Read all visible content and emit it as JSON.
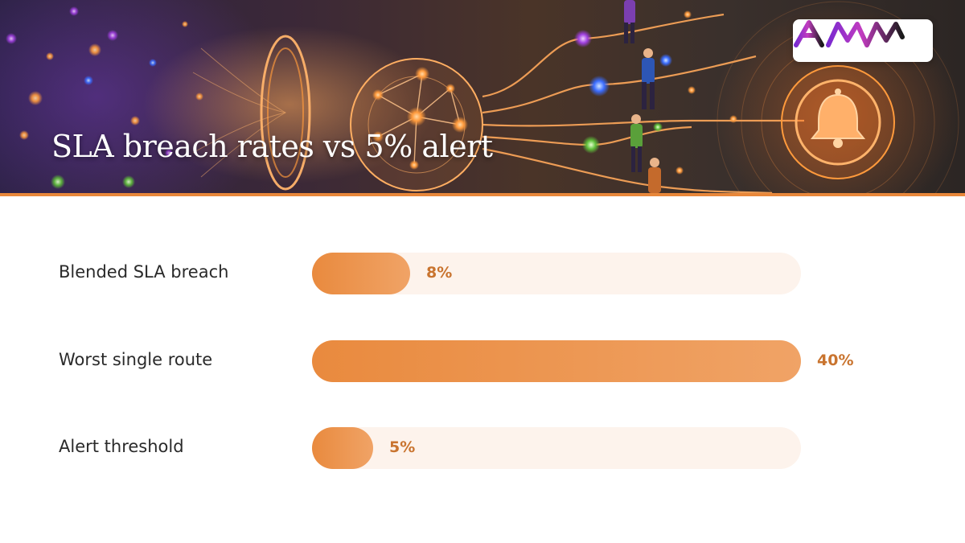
{
  "header": {
    "title": "SLA breach rates vs 5% alert",
    "logo_text": "AMW"
  },
  "chart_data": {
    "type": "bar",
    "orientation": "horizontal",
    "categories": [
      "Blended SLA breach",
      "Worst single route",
      "Alert threshold"
    ],
    "values": [
      8,
      40,
      5
    ],
    "value_labels": [
      "8%",
      "40%",
      "5%"
    ],
    "xlim": [
      0,
      40
    ],
    "grid": false
  },
  "colors": {
    "accent": "#e8873a",
    "bar_start": "#e98a3e",
    "bar_end": "#f0a366",
    "track": "#fdf3ec",
    "value_text": "#c9742f"
  }
}
